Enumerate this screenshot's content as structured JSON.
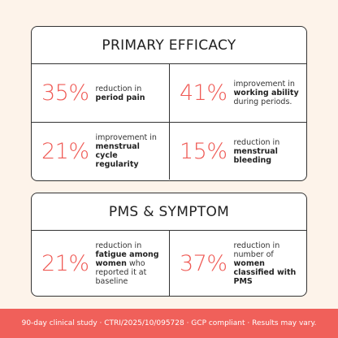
{
  "sections": [
    {
      "title": "PRIMARY EFFICACY",
      "stats": [
        {
          "value": "35%",
          "lead": "reduction in",
          "bold": "period pain"
        },
        {
          "value": "41%",
          "lead": "improvement in",
          "bold": "working ability",
          "tail": "during periods."
        },
        {
          "value": "21%",
          "lead": "improvement in",
          "bold": "menstrual cycle regularity"
        },
        {
          "value": "15%",
          "lead": "reduction in",
          "bold": "menstrual bleeding"
        }
      ]
    },
    {
      "title": "PMS & SYMPTOM",
      "stats": [
        {
          "value": "21%",
          "lead": "reduction in",
          "bold": "fatigue among women",
          "tail": "who reported it at baseline"
        },
        {
          "value": "37%",
          "lead": "reduction in number of",
          "bold": "women classified with PMS"
        }
      ]
    }
  ],
  "footer": "90-day clinical study · CTRI/2025/10/095728 · GCP compliant · Results may vary."
}
